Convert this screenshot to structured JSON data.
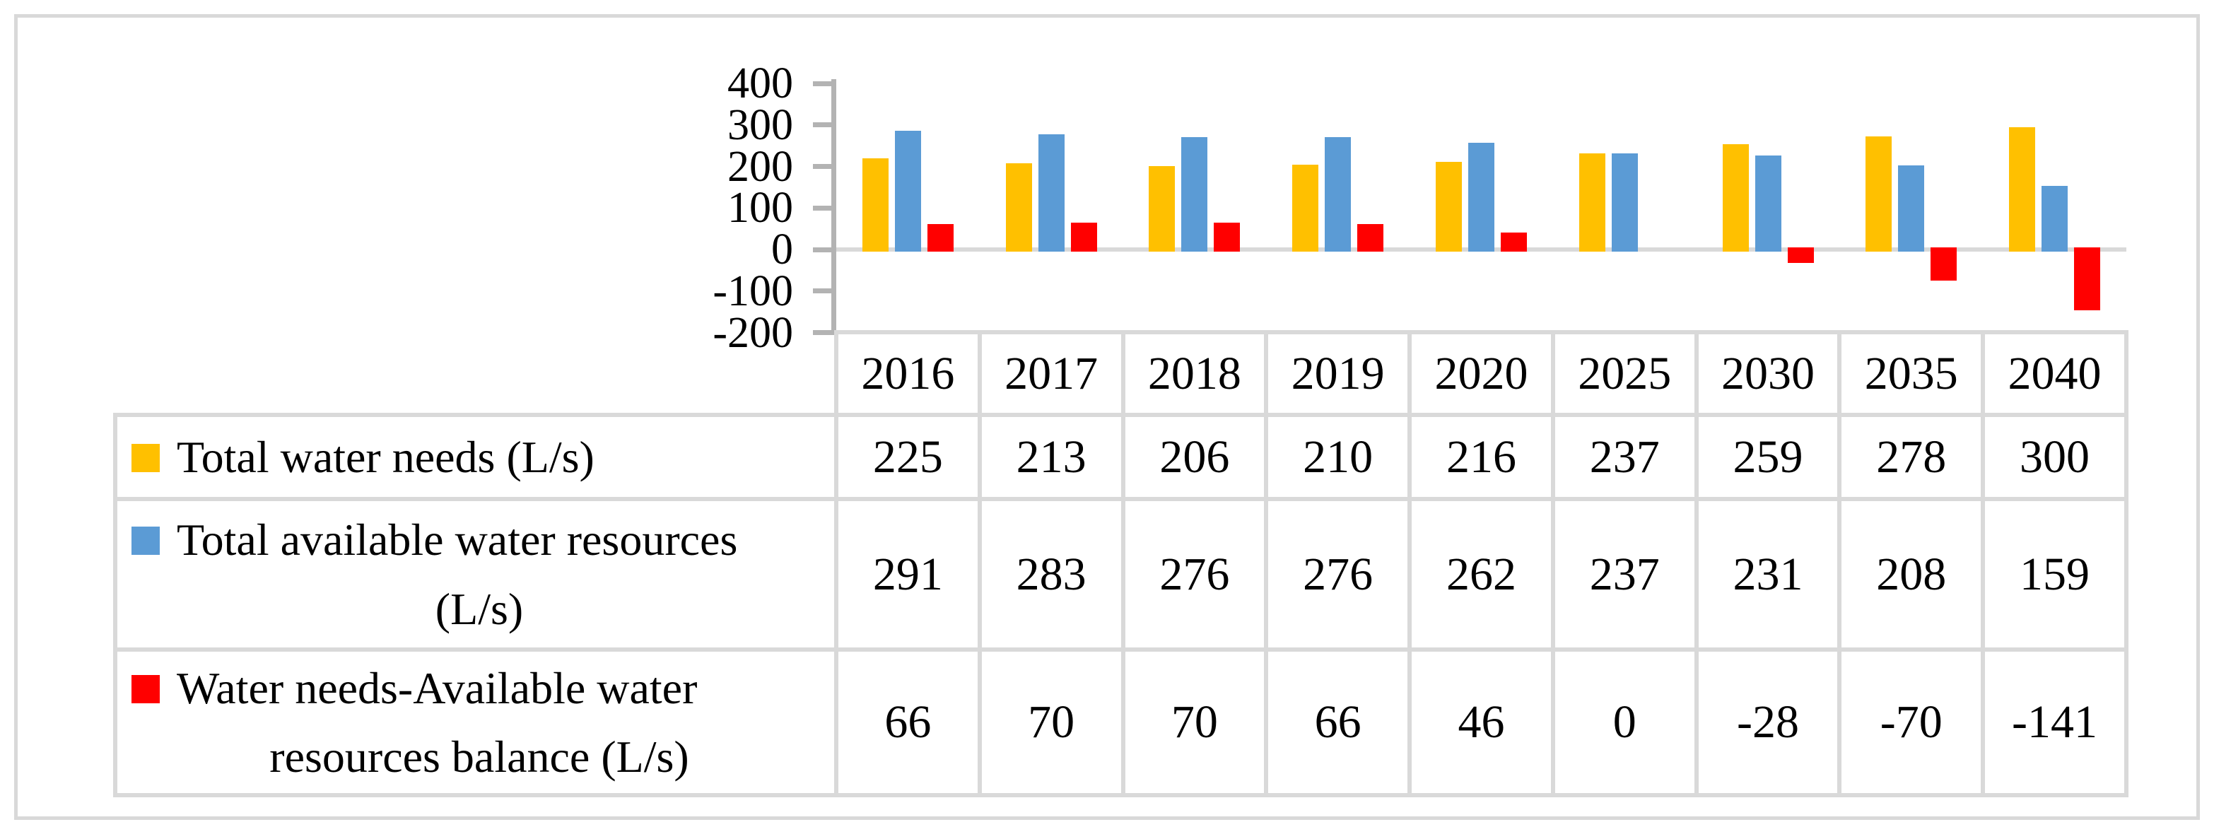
{
  "chart_data": {
    "type": "bar",
    "title": "",
    "categories": [
      "2016",
      "2017",
      "2018",
      "2019",
      "2020",
      "2025",
      "2030",
      "2035",
      "2040"
    ],
    "series": [
      {
        "name": "Total water needs (L/s)",
        "color": "#FFC000",
        "values": [
          225,
          213,
          206,
          210,
          216,
          237,
          259,
          278,
          300
        ]
      },
      {
        "name": "Total available water resources (L/s)",
        "color": "#5B9BD5",
        "values": [
          291,
          283,
          276,
          276,
          262,
          237,
          231,
          208,
          159
        ]
      },
      {
        "name": "Water needs-Available water resources balance (L/s)",
        "color": "#FF0000",
        "values": [
          66,
          70,
          70,
          66,
          46,
          0,
          -28,
          -70,
          -141
        ]
      }
    ],
    "xlabel": "",
    "ylabel": "",
    "ylim": [
      -200,
      400
    ],
    "yticks": [
      400,
      300,
      200,
      100,
      0,
      -100,
      -200
    ],
    "grid": false,
    "legend_position": "data-table-left"
  },
  "table": {
    "row_labels": [
      "Total water needs (L/s)",
      "Total available water resources\n(L/s)",
      "Water needs-Available water\nresources balance (L/s)"
    ]
  },
  "style": {
    "bar_colors": [
      "#FFC000",
      "#5B9BD5",
      "#FF0000"
    ],
    "axis_color": "#B3B3B3",
    "gridline_color": "#D9D9D9",
    "table_border_color": "#D9D9D9",
    "frame_border_color": "#D9D9D9",
    "text_color": "#000000",
    "background": "#FFFFFF"
  }
}
